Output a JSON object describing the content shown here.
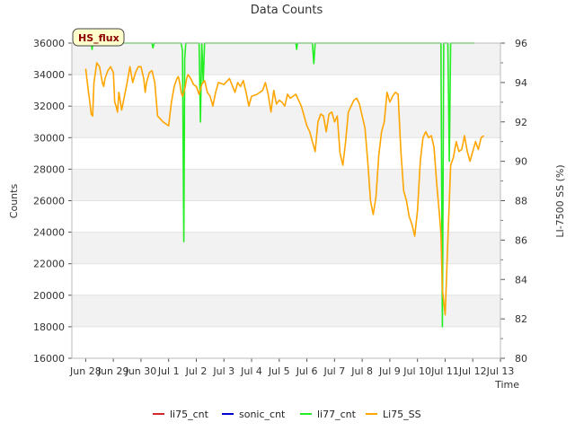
{
  "chart_data": {
    "type": "line",
    "title": "Data Counts",
    "xlabel": "Time",
    "ylabel": "Counts",
    "y2label": "LI-7500 SS (%)",
    "annotation": "HS_flux",
    "xlim": [
      -0.5,
      15.0
    ],
    "ylim": [
      16000,
      36000
    ],
    "y2lim": [
      80,
      96
    ],
    "x_tick_values": [
      0,
      1,
      2,
      3,
      4,
      5,
      6,
      7,
      8,
      9,
      10,
      11,
      12,
      13,
      14,
      15
    ],
    "x_tick_labels": [
      "Jun 28",
      "Jun 29",
      "Jun 30",
      "Jul 1",
      "Jul 2",
      "Jul 3",
      "Jul 4",
      "Jul 5",
      "Jul 6",
      "Jul 7",
      "Jul 8",
      "Jul 9",
      "Jul 10",
      "Jul 11",
      "Jul 12",
      "Jul 13"
    ],
    "y_ticks": [
      16000,
      18000,
      20000,
      22000,
      24000,
      26000,
      28000,
      30000,
      32000,
      34000,
      36000
    ],
    "y2_ticks": [
      80,
      82,
      84,
      86,
      88,
      90,
      92,
      94,
      96
    ],
    "grid": "horizontal bands",
    "legend_position": "bottom",
    "series": [
      {
        "name": "li75_cnt",
        "color": "#d62728",
        "axis": "left",
        "x": [],
        "y": []
      },
      {
        "name": "sonic_cnt",
        "color": "#0000cc",
        "axis": "left",
        "x": [],
        "y": []
      },
      {
        "name": "li77_cnt",
        "color": "#22ee22",
        "axis": "left",
        "x": [
          0.0,
          0.2,
          0.23,
          0.26,
          2.4,
          2.43,
          2.48,
          3.45,
          3.5,
          3.55,
          3.58,
          3.62,
          4.1,
          4.15,
          4.2,
          4.25,
          4.3,
          7.6,
          7.63,
          7.66,
          8.2,
          8.25,
          8.3,
          12.85,
          12.9,
          12.95,
          13.1,
          13.15,
          13.2,
          13.25,
          14.05
        ],
        "y": [
          36000,
          36000,
          35600,
          36000,
          36000,
          35700,
          36000,
          36000,
          35500,
          23400,
          35000,
          36000,
          36000,
          31000,
          36000,
          33500,
          36000,
          36000,
          35600,
          36000,
          36000,
          34700,
          36000,
          36000,
          18000,
          36000,
          36000,
          28500,
          36000,
          36000,
          36000
        ]
      },
      {
        "name": "Li75_SS",
        "color": "#ffa500",
        "axis": "right",
        "x": [
          0.0,
          0.1,
          0.15,
          0.2,
          0.25,
          0.3,
          0.35,
          0.4,
          0.5,
          0.6,
          0.65,
          0.7,
          0.8,
          0.9,
          1.0,
          1.05,
          1.1,
          1.15,
          1.2,
          1.3,
          1.5,
          1.6,
          1.7,
          1.8,
          1.9,
          2.0,
          2.1,
          2.15,
          2.2,
          2.3,
          2.4,
          2.5,
          2.6,
          2.8,
          3.0,
          3.1,
          3.2,
          3.3,
          3.35,
          3.4,
          3.45,
          3.5,
          3.55,
          3.6,
          3.65,
          3.7,
          3.8,
          3.9,
          4.0,
          4.1,
          4.2,
          4.3,
          4.4,
          4.5,
          4.6,
          4.7,
          4.8,
          5.0,
          5.2,
          5.4,
          5.5,
          5.6,
          5.7,
          5.8,
          5.9,
          6.0,
          6.2,
          6.4,
          6.5,
          6.6,
          6.7,
          6.8,
          6.9,
          7.0,
          7.1,
          7.2,
          7.3,
          7.4,
          7.6,
          7.8,
          8.0,
          8.1,
          8.2,
          8.3,
          8.4,
          8.5,
          8.6,
          8.7,
          8.8,
          8.9,
          9.0,
          9.1,
          9.2,
          9.3,
          9.4,
          9.5,
          9.6,
          9.7,
          9.8,
          9.9,
          10.0,
          10.1,
          10.2,
          10.3,
          10.4,
          10.5,
          10.6,
          10.7,
          10.8,
          10.9,
          11.0,
          11.1,
          11.2,
          11.3,
          11.4,
          11.5,
          11.6,
          11.7,
          11.8,
          11.9,
          12.0,
          12.1,
          12.2,
          12.3,
          12.4,
          12.5,
          12.6,
          12.7,
          12.8,
          12.85,
          12.9,
          13.0,
          13.1,
          13.2,
          13.3,
          13.4,
          13.5,
          13.6,
          13.7,
          13.8,
          13.9,
          14.0,
          14.1,
          14.2,
          14.3,
          14.4
        ],
        "y": [
          94.7,
          93.5,
          93.0,
          92.4,
          92.3,
          94.0,
          94.5,
          95.0,
          94.8,
          94.0,
          93.8,
          94.2,
          94.6,
          94.8,
          94.5,
          93.0,
          92.8,
          92.5,
          93.5,
          92.6,
          94.0,
          94.8,
          94.0,
          94.5,
          94.8,
          94.8,
          94.2,
          93.5,
          94.0,
          94.5,
          94.6,
          94.0,
          92.3,
          92.0,
          91.8,
          93.0,
          93.8,
          94.2,
          94.3,
          94.0,
          93.5,
          93.3,
          93.5,
          93.8,
          94.2,
          94.4,
          94.2,
          93.9,
          93.8,
          93.4,
          93.9,
          94.1,
          93.5,
          93.3,
          92.8,
          93.5,
          94.0,
          93.9,
          94.2,
          93.5,
          94.0,
          93.8,
          94.1,
          93.5,
          92.8,
          93.3,
          93.4,
          93.6,
          94.0,
          93.4,
          92.5,
          93.6,
          92.9,
          93.1,
          93.0,
          92.8,
          93.4,
          93.2,
          93.4,
          92.8,
          91.8,
          91.5,
          91.0,
          90.5,
          92.0,
          92.4,
          92.3,
          91.5,
          92.4,
          92.5,
          92.0,
          92.3,
          90.4,
          89.8,
          91.0,
          92.5,
          92.8,
          93.1,
          93.2,
          92.9,
          92.3,
          91.7,
          90.0,
          88.0,
          87.3,
          88.2,
          90.3,
          91.5,
          92.0,
          93.5,
          93.0,
          93.3,
          93.5,
          93.4,
          90.5,
          88.5,
          88.0,
          87.2,
          86.8,
          86.2,
          87.5,
          90.0,
          91.2,
          91.5,
          91.2,
          91.3,
          90.7,
          88.8,
          87.2,
          86.3,
          83.5,
          82.2,
          86.0,
          89.8,
          90.2,
          91.0,
          90.5,
          90.6,
          91.3,
          90.5,
          90.0,
          90.5,
          91.0,
          90.6,
          91.2,
          91.3
        ]
      }
    ]
  }
}
